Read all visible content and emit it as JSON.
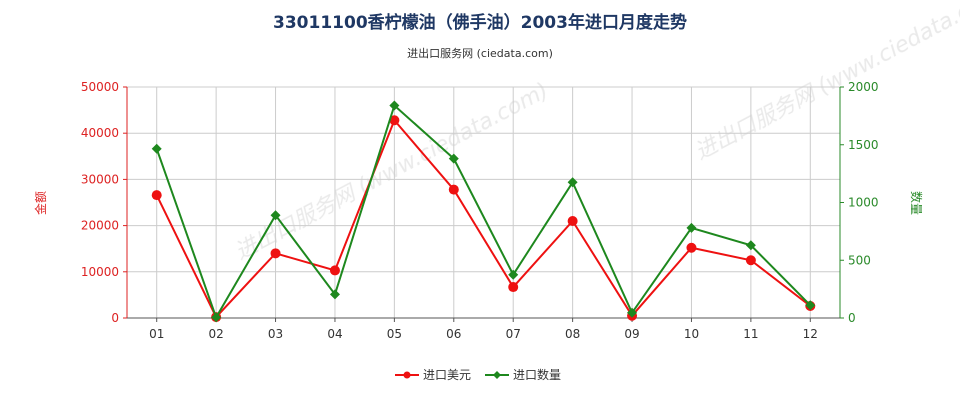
{
  "chart_data": {
    "type": "line",
    "title": "33011100香柠檬油（佛手油）2003年进口月度走势",
    "subtitle": "进出口服务网 (ciedata.com)",
    "watermark": "进出口服务网 (www.ciedata.com)",
    "categories": [
      "01",
      "02",
      "03",
      "04",
      "05",
      "06",
      "07",
      "08",
      "09",
      "10",
      "11",
      "12"
    ],
    "y_left": {
      "label": "金额",
      "range": [
        0,
        50000
      ],
      "ticks": [
        "0",
        "10000",
        "20000",
        "30000",
        "40000",
        "50000"
      ],
      "color": "#dd2222"
    },
    "y_right": {
      "label": "数量",
      "range": [
        0,
        2000
      ],
      "ticks": [
        "0",
        "500",
        "1000",
        "1500",
        "2000"
      ],
      "color": "#2a8a2a"
    },
    "series": [
      {
        "name": "进口美元",
        "axis": "left",
        "color": "#ee1111",
        "values": [
          26600,
          200,
          14000,
          10300,
          42800,
          27800,
          6700,
          21000,
          500,
          15200,
          12500,
          2600
        ]
      },
      {
        "name": "进口数量",
        "axis": "right",
        "color": "#1e881e",
        "values": [
          1465,
          5,
          890,
          205,
          1840,
          1380,
          375,
          1175,
          45,
          780,
          630,
          110
        ]
      }
    ],
    "grid": true,
    "legend_position": "bottom-center"
  }
}
